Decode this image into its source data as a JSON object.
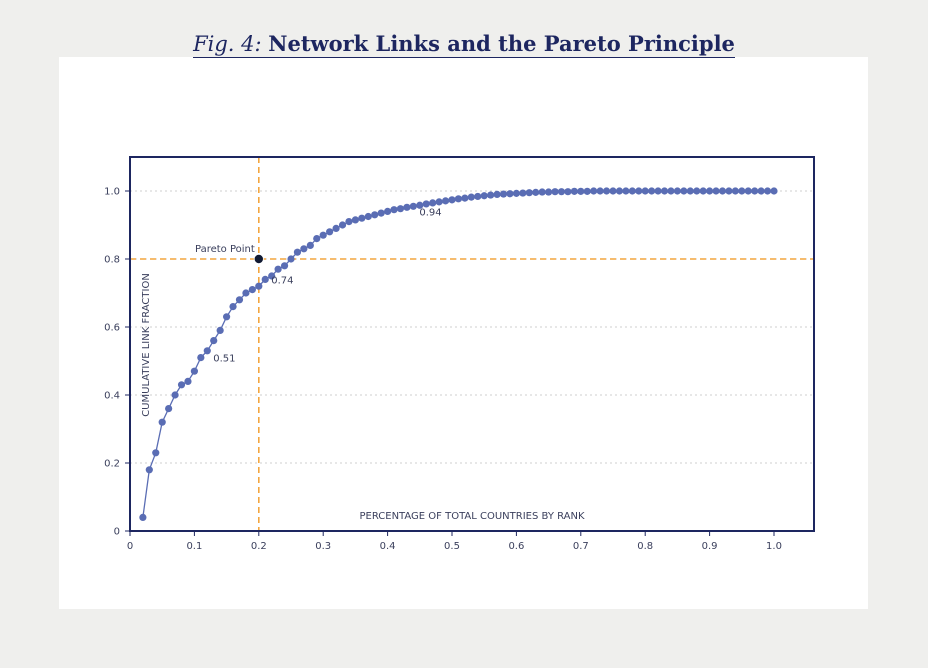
{
  "figure": {
    "prefix": "Fig. 4:",
    "title": "Network Links and the Pareto Principle"
  },
  "colors": {
    "page_background": "#efefed",
    "frame": "#1d2660",
    "series": "#5a6db4",
    "reference": "#f4a63f",
    "text": "#3a3f5c",
    "grid": "#cfcfcf"
  },
  "chart_data": {
    "type": "line",
    "xlabel": "PERCENTAGE OF TOTAL COUNTRIES BY RANK",
    "ylabel": "CUMULATIVE LINK FRACTION",
    "xlim": [
      0,
      1.06
    ],
    "ylim": [
      0,
      1.1
    ],
    "xticks": [
      "0",
      "0.1",
      "0.2",
      "0.3",
      "0.4",
      "0.5",
      "0.6",
      "0.7",
      "0.8",
      "0.9",
      "1.0"
    ],
    "yticks": [
      "0",
      "0.2",
      "0.4",
      "0.6",
      "0.8",
      "1.0"
    ],
    "grid": "horizontal dashed",
    "series": [
      {
        "x": [
          0.02,
          0.03,
          0.04,
          0.05,
          0.06,
          0.07,
          0.08,
          0.09,
          0.1,
          0.11,
          0.12,
          0.13,
          0.14,
          0.15,
          0.16,
          0.17,
          0.18,
          0.19,
          0.2,
          0.21,
          0.22,
          0.23,
          0.24,
          0.25,
          0.26,
          0.27,
          0.28,
          0.29,
          0.3,
          0.31,
          0.32,
          0.33,
          0.34,
          0.35,
          0.36,
          0.37,
          0.38,
          0.39,
          0.4,
          0.41,
          0.42,
          0.43,
          0.44,
          0.45,
          0.46,
          0.47,
          0.48,
          0.49,
          0.5,
          0.51,
          0.52,
          0.53,
          0.54,
          0.55,
          0.56,
          0.57,
          0.58,
          0.59,
          0.6,
          0.61,
          0.62,
          0.63,
          0.64,
          0.65,
          0.66,
          0.67,
          0.68,
          0.69,
          0.7,
          0.71,
          0.72,
          0.73,
          0.74,
          0.75,
          0.76,
          0.77,
          0.78,
          0.79,
          0.8,
          0.81,
          0.82,
          0.83,
          0.84,
          0.85,
          0.86,
          0.87,
          0.88,
          0.89,
          0.9,
          0.91,
          0.92,
          0.93,
          0.94,
          0.95,
          0.96,
          0.97,
          0.98,
          0.99,
          1.0
        ],
        "y": [
          0.04,
          0.18,
          0.23,
          0.32,
          0.36,
          0.4,
          0.43,
          0.44,
          0.47,
          0.51,
          0.53,
          0.56,
          0.59,
          0.63,
          0.66,
          0.68,
          0.7,
          0.71,
          0.72,
          0.74,
          0.75,
          0.77,
          0.78,
          0.8,
          0.82,
          0.83,
          0.84,
          0.86,
          0.87,
          0.88,
          0.89,
          0.9,
          0.91,
          0.915,
          0.92,
          0.925,
          0.93,
          0.935,
          0.94,
          0.945,
          0.948,
          0.952,
          0.955,
          0.958,
          0.962,
          0.965,
          0.968,
          0.971,
          0.974,
          0.977,
          0.979,
          0.982,
          0.984,
          0.986,
          0.988,
          0.99,
          0.991,
          0.992,
          0.993,
          0.994,
          0.995,
          0.996,
          0.997,
          0.997,
          0.998,
          0.998,
          0.998,
          0.999,
          0.999,
          0.999,
          1.0,
          1.0,
          1.0,
          1.0,
          1.0,
          1.0,
          1.0,
          1.0,
          1.0,
          1.0,
          1.0,
          1.0,
          1.0,
          1.0,
          1.0,
          1.0,
          1.0,
          1.0,
          1.0,
          1.0,
          1.0,
          1.0,
          1.0,
          1.0,
          1.0,
          1.0,
          1.0,
          1.0,
          1.0
        ]
      }
    ],
    "reference_lines": {
      "x": 0.2,
      "y": 0.8
    },
    "highlight": {
      "x": 0.2,
      "y": 0.8,
      "label": "Pareto Point"
    },
    "annotations": [
      {
        "x": 0.12,
        "y": 0.51,
        "text": "0.51"
      },
      {
        "x": 0.21,
        "y": 0.74,
        "text": "0.74"
      },
      {
        "x": 0.44,
        "y": 0.94,
        "text": "0.94"
      }
    ]
  }
}
